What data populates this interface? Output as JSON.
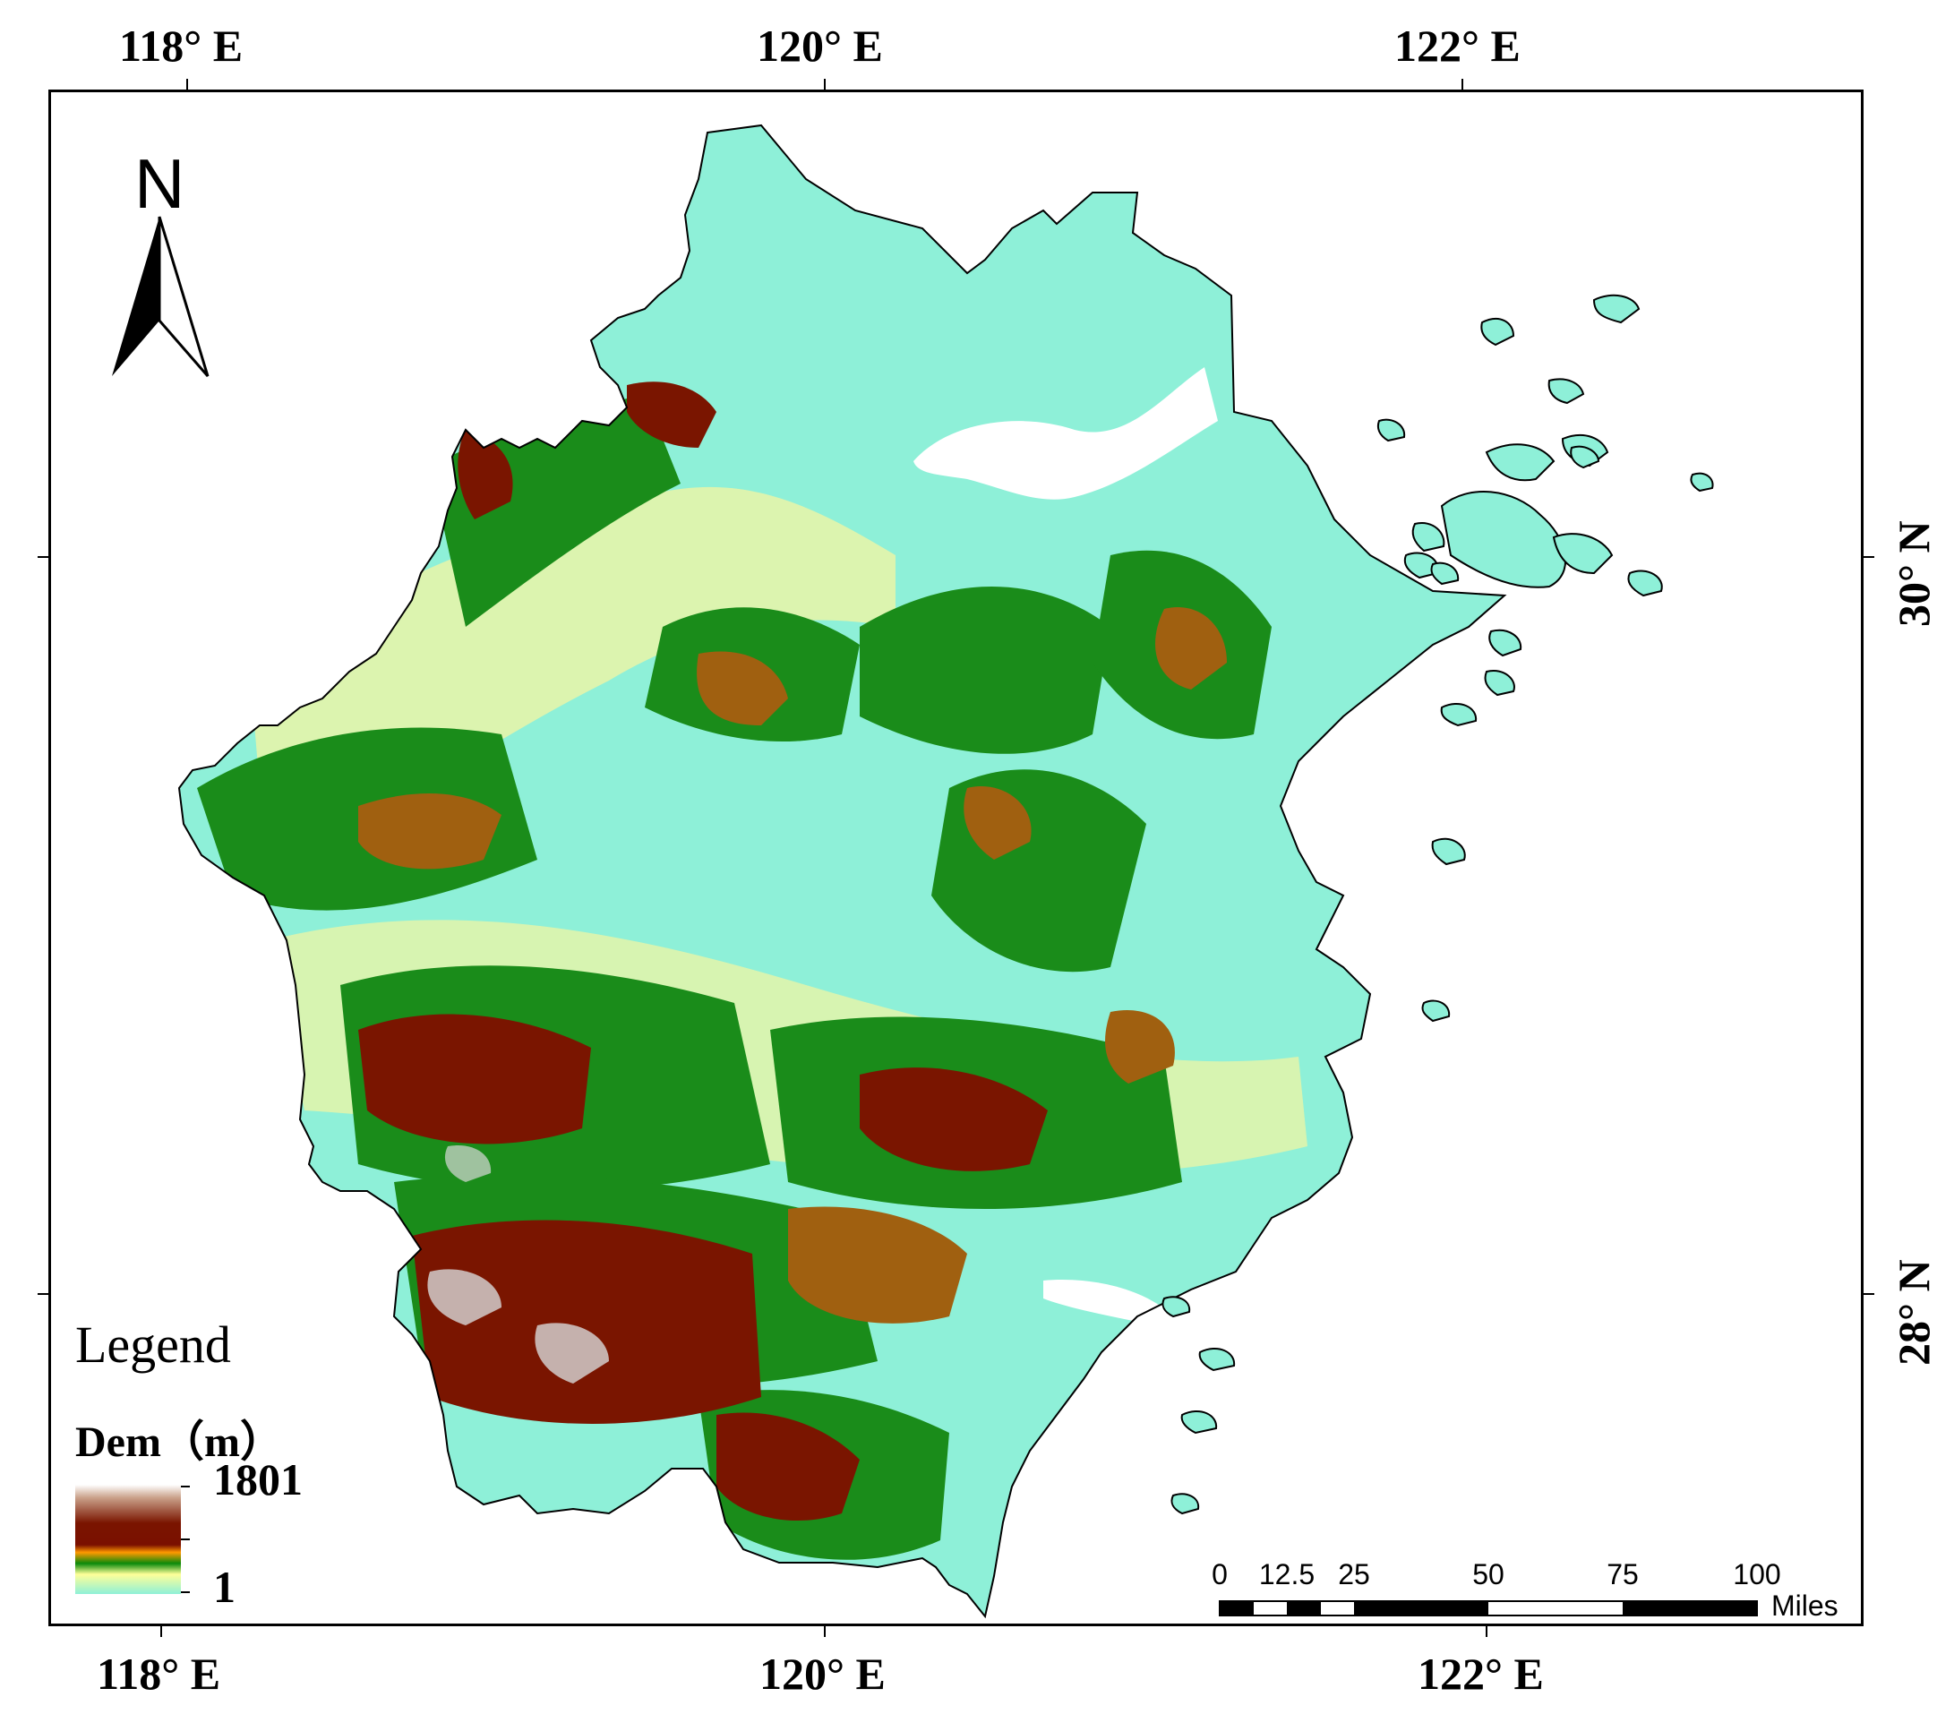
{
  "axes": {
    "top_labels": [
      "118° E",
      "120° E",
      "122° E"
    ],
    "bottom_labels": [
      "118° E",
      "120° E",
      "122° E"
    ],
    "right_labels": [
      "30° N",
      "28° N"
    ]
  },
  "north_arrow": {
    "letter": "N",
    "icon": "north-arrow-icon"
  },
  "legend": {
    "title": "Legend",
    "subtitle": "Dem（m）",
    "max": "1801",
    "min": "1",
    "colors": [
      "#ffffff",
      "#8b2a10",
      "#7a0d00",
      "#ff9900",
      "#0a8a0a",
      "#ffff99",
      "#8ef0d8"
    ]
  },
  "scale_bar": {
    "labels": [
      "0",
      "12.5",
      "25",
      "50",
      "75",
      "100"
    ],
    "unit": "Miles"
  },
  "colors": {
    "lowland": "#8ef0d8",
    "plain": "#eaf5a8",
    "hill": "#1a8c1a",
    "mountain": "#a06010",
    "peak": "#7a1500",
    "summit": "#d8d8d8",
    "water": "#ffffff"
  }
}
